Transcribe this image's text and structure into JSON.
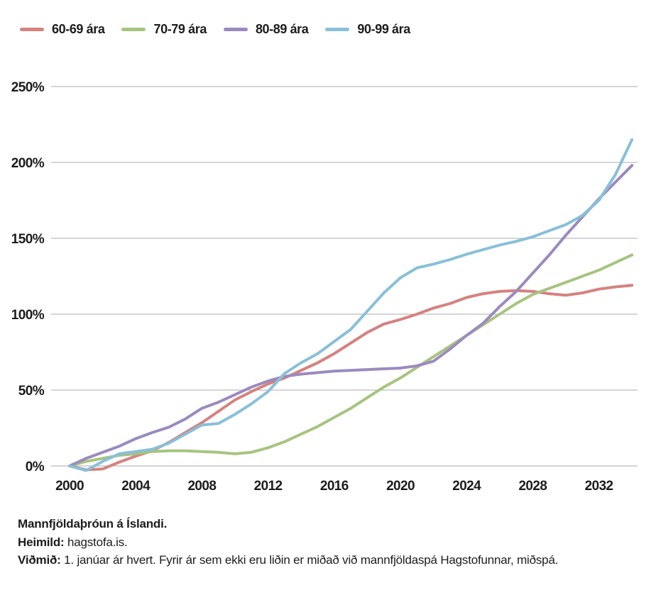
{
  "caption": {
    "title": "Mannfjöldaþróun á Íslandi.",
    "source_label": "Heimild:",
    "source_text": " hagstofa.is.",
    "note_label": "Viðmið:",
    "note_text": " 1. janúar ár hvert. Fyrir ár sem ekki eru liðin er miðað við mannfjöldaspá Hagstofunnar, miðspá."
  },
  "colors": {
    "grid": "#bcbcbf",
    "text": "#1c1c1c",
    "background": "#ffffff"
  },
  "chart_data": {
    "type": "line",
    "title": "Mannfjöldaþróun á Íslandi.",
    "xlabel": "",
    "ylabel": "",
    "ylim": [
      0,
      250
    ],
    "grid": true,
    "legend_position": "top",
    "y_tick_suffix": "%",
    "y_ticks": [
      0,
      50,
      100,
      150,
      200,
      250
    ],
    "x_ticks": [
      2000,
      2004,
      2008,
      2012,
      2016,
      2020,
      2024,
      2028,
      2032
    ],
    "x": [
      2000,
      2001,
      2002,
      2003,
      2004,
      2005,
      2006,
      2007,
      2008,
      2009,
      2010,
      2011,
      2012,
      2013,
      2014,
      2015,
      2016,
      2017,
      2018,
      2019,
      2020,
      2021,
      2022,
      2023,
      2024,
      2025,
      2026,
      2027,
      2028,
      2029,
      2030,
      2031,
      2032,
      2033,
      2034
    ],
    "series": [
      {
        "id": "60-69",
        "name": "60-69 ára",
        "color": "#d5827e",
        "values": [
          0,
          -2.5,
          -2,
          2.5,
          6.5,
          10,
          15.5,
          22,
          28.5,
          36,
          43.5,
          49,
          54,
          58,
          63,
          68,
          74,
          81,
          88,
          93.5,
          96.5,
          100,
          104,
          107,
          111,
          113.5,
          115,
          115.5,
          115,
          113.5,
          112.5,
          114,
          116.5,
          118,
          119
        ]
      },
      {
        "id": "70-79",
        "name": "70-79 ára",
        "color": "#a6c47f",
        "values": [
          0,
          3,
          5,
          7,
          8,
          9.5,
          10,
          10,
          9.5,
          9,
          8,
          9,
          12,
          16,
          21,
          26,
          32,
          38,
          45,
          52,
          58,
          65,
          72,
          79,
          86,
          93,
          100,
          107,
          113,
          117,
          121,
          125,
          129,
          134,
          139
        ]
      },
      {
        "id": "80-89",
        "name": "80-89 ára",
        "color": "#9b8abe",
        "values": [
          0,
          5,
          9,
          13,
          18,
          22,
          25.5,
          31,
          38,
          42,
          47,
          52,
          56,
          59,
          60.5,
          61.5,
          62.5,
          63,
          63.5,
          64,
          64.5,
          66,
          69,
          77,
          86,
          94,
          105,
          115,
          127,
          139,
          152,
          164,
          176,
          187,
          198
        ]
      },
      {
        "id": "90-99",
        "name": "90-99 ára",
        "color": "#88c0d8",
        "values": [
          0,
          -3,
          3,
          8,
          9.5,
          11,
          15,
          21,
          27,
          28,
          34,
          41,
          49,
          61,
          68,
          74,
          82,
          90,
          102,
          114,
          124,
          130.5,
          133,
          136,
          139.5,
          142.5,
          145.5,
          148,
          151,
          155,
          159,
          165,
          175,
          192,
          215
        ]
      }
    ]
  }
}
